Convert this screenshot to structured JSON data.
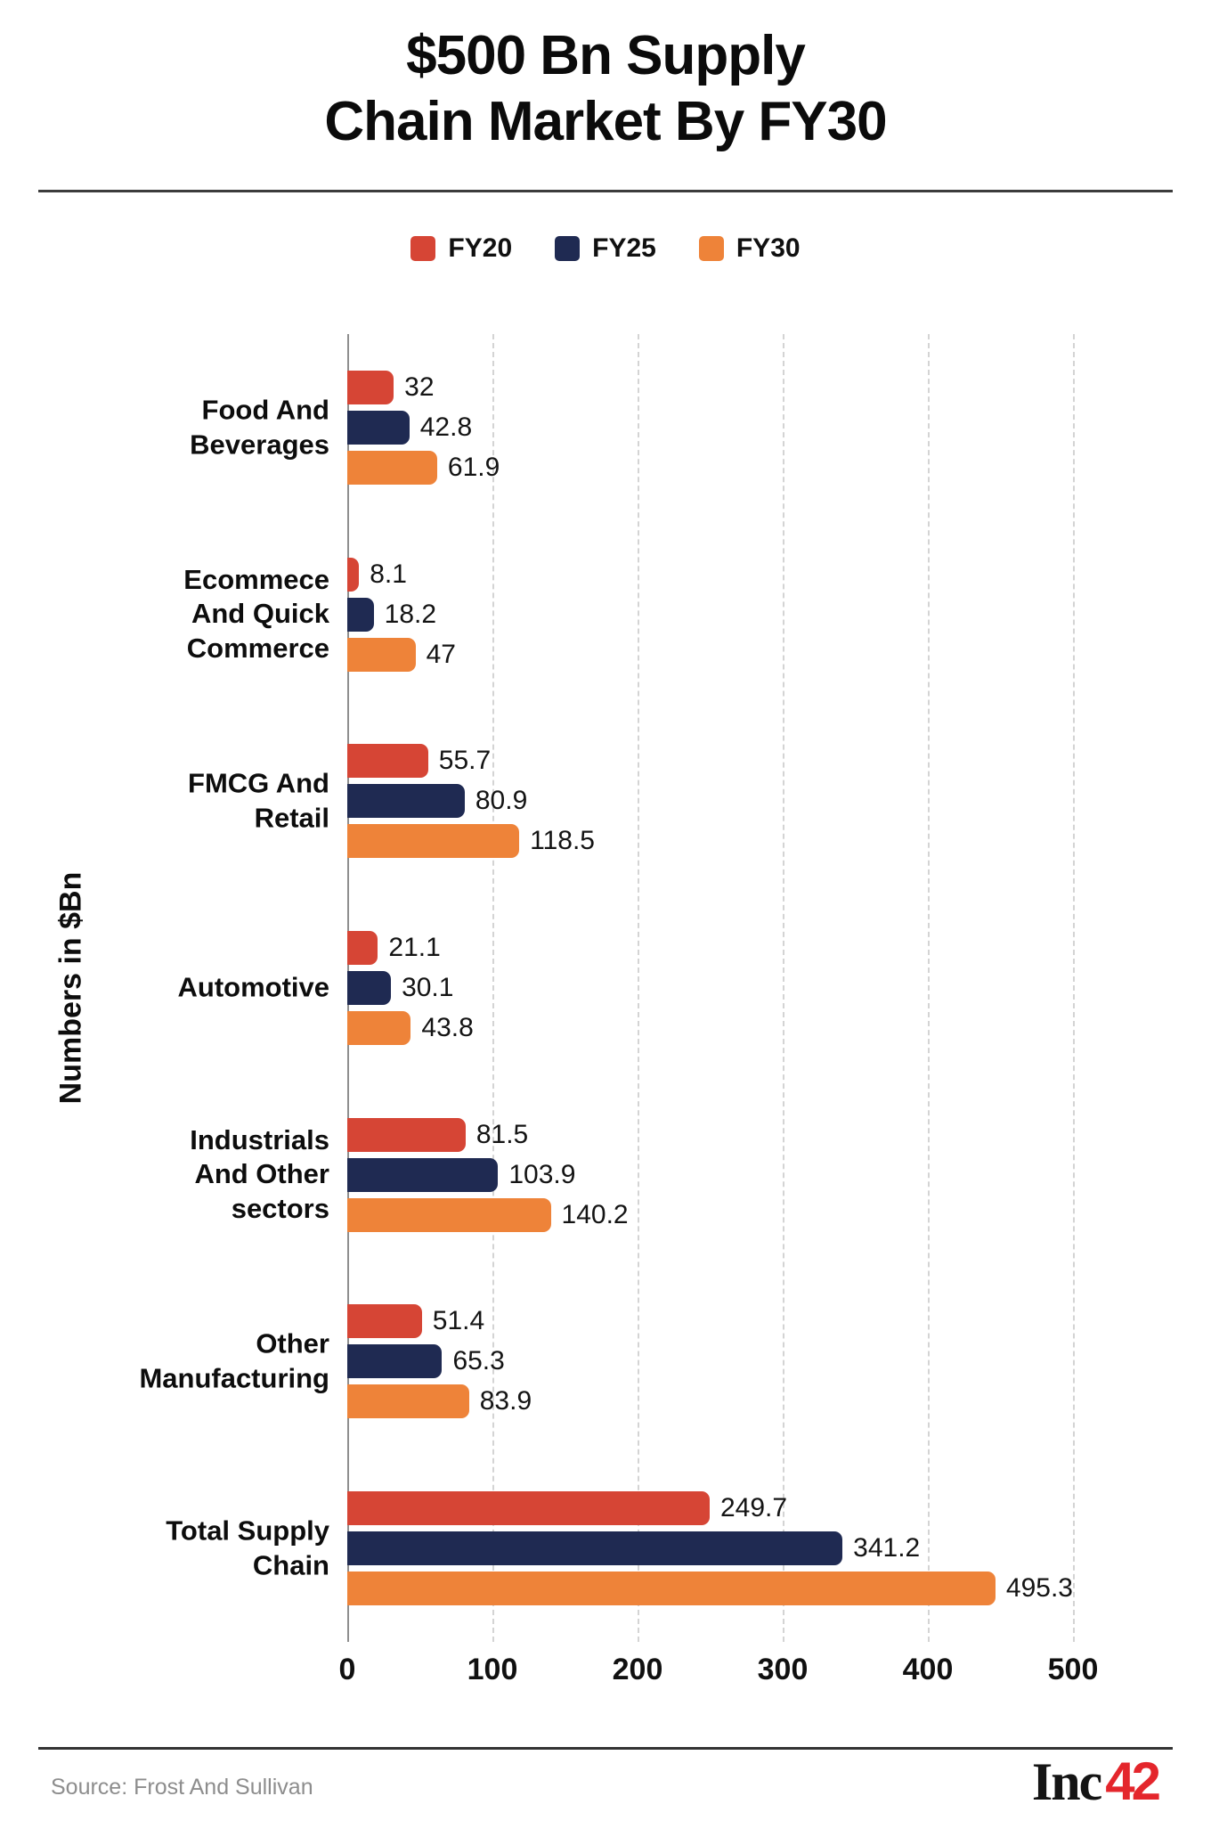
{
  "header": {
    "title": "$500 Bn Supply\nChain Market By FY30"
  },
  "legend": [
    {
      "label": "FY20",
      "color": "#D64535"
    },
    {
      "label": "FY25",
      "color": "#1F2A52"
    },
    {
      "label": "FY30",
      "color": "#EE8339"
    }
  ],
  "chart_data": {
    "type": "bar",
    "orientation": "horizontal",
    "title": "$500 Bn Supply Chain Market By FY30",
    "xlabel": "",
    "ylabel": "Numbers in $Bn",
    "xlim": [
      0,
      500
    ],
    "x_ticks": [
      0,
      100,
      200,
      300,
      400,
      500
    ],
    "grid": "vertical-dashed",
    "legend_position": "top-center",
    "categories": [
      "Food And\nBeverages",
      "Ecommece\nAnd Quick\nCommerce",
      "FMCG And\nRetail",
      "Automotive",
      "Industrials\nAnd Other\nsectors",
      "Other\nManufacturing",
      "Total Supply\nChain"
    ],
    "series": [
      {
        "name": "FY20",
        "color": "#D64535",
        "values": [
          32,
          8.1,
          55.7,
          21.1,
          81.5,
          51.4,
          249.7
        ]
      },
      {
        "name": "FY25",
        "color": "#1F2A52",
        "values": [
          42.8,
          18.2,
          80.9,
          30.1,
          103.9,
          65.3,
          341.2
        ]
      },
      {
        "name": "FY30",
        "color": "#EE8339",
        "values": [
          61.9,
          47,
          118.5,
          43.8,
          140.2,
          83.9,
          495.3
        ]
      }
    ]
  },
  "footer": {
    "source": "Source: Frost And Sullivan",
    "logo_black": "Inc",
    "logo_red": "42"
  }
}
